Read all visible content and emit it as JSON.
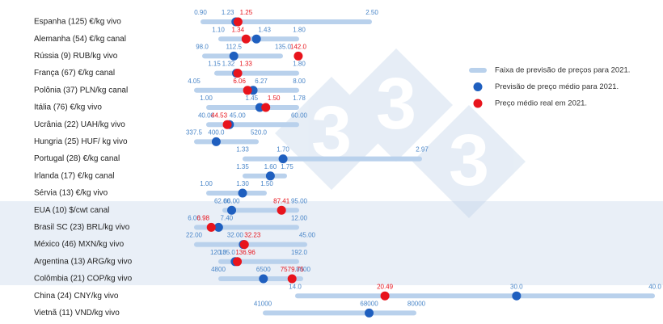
{
  "chart_data": {
    "type": "range",
    "series": [
      {
        "name": "Faixa de previsão de preços para 2021.",
        "color": "#b9d1ec"
      },
      {
        "name": "Previsão de preço médio para 2021.",
        "color": "#1f5fbf"
      },
      {
        "name": "Preço médio real em 2021.",
        "color": "#e8141c"
      }
    ],
    "label_color": "#4a86c8",
    "actual_label_color": "#e8141c",
    "rows": [
      {
        "label": "Espanha (125) €/kg vivo",
        "low": 0.9,
        "forecast": 1.23,
        "high": 2.5,
        "actual": 1.25,
        "value_labels": {
          "low": "0.90",
          "high": "2.50"
        }
      },
      {
        "label": "Alemanha (54) €/kg canal",
        "low": 1.1,
        "forecast": 1.43,
        "high": 1.8,
        "actual": 1.34,
        "value_labels": {
          "low": "1.10",
          "high": "1.80"
        }
      },
      {
        "label": "Rússia (9) RUB/kg vivo",
        "low": 98,
        "forecast": 112.5,
        "high": 135,
        "actual": 142,
        "value_labels": {
          "low": "98.0",
          "high": "135.0",
          "actual": "142.0"
        }
      },
      {
        "label": "França (67) €/kg canal",
        "low": 1.15,
        "forecast": 1.32,
        "high": 1.8,
        "actual": 1.33,
        "value_labels": {
          "high": "1.80"
        }
      },
      {
        "label": "Polônia (37) PLN/kg canal",
        "low": 4.05,
        "forecast": 6.27,
        "high": 8,
        "actual": 6.06,
        "value_labels": {
          "high": "8.00"
        }
      },
      {
        "label": "Itália (76) €/kg vivo",
        "low": 1,
        "forecast": 1.45,
        "high": 1.78,
        "actual": 1.5,
        "value_labels": {
          "low": "1.00",
          "actual": "1.50"
        }
      },
      {
        "label": "Ucrânia (22) UAH/kg vivo",
        "low": 40,
        "forecast": 45,
        "high": 60,
        "actual": 44.53,
        "value_labels": {
          "low": "40.00",
          "forecast": "45.00",
          "high": "60.00"
        }
      },
      {
        "label": "Hungria (25) HUF/ kg vivo",
        "low": 337.5,
        "forecast": 400,
        "high": 520,
        "value_labels": {
          "forecast": "400.0",
          "high": "520.0"
        }
      },
      {
        "label": "Portugal (28) €/kg canal",
        "low": 1.33,
        "forecast": 1.7,
        "high": 2.97,
        "value_labels": {
          "forecast": "1.70"
        }
      },
      {
        "label": "Irlanda (17) €/kg canal",
        "low": 1.35,
        "forecast": 1.6,
        "high": 1.75,
        "value_labels": {
          "forecast": "1.60"
        }
      },
      {
        "label": "Sérvia (13) €/kg vivo",
        "low": 1,
        "forecast": 1.3,
        "high": 1.5,
        "value_labels": {
          "low": "1.00",
          "forecast": "1.30",
          "high": "1.50"
        }
      },
      {
        "label": "EUA (10) $/cwt canal",
        "low": 62,
        "forecast": 66,
        "high": 95,
        "actual": 87.41,
        "value_labels": {
          "low": "62.00",
          "forecast": "66.00",
          "high": "95.00"
        }
      },
      {
        "label": "Brasil SC (23) BRL/kg vivo",
        "low": 6,
        "forecast": 7.4,
        "high": 12,
        "actual": 6.98,
        "value_labels": {
          "low": "6.00",
          "forecast": "7.40",
          "high": "12.00"
        }
      },
      {
        "label": "México (46) MXN/kg vivo",
        "low": 22,
        "forecast": 32,
        "high": 45,
        "actual": 32.23,
        "value_labels": {
          "low": "22.00",
          "forecast": "32.00",
          "high": "45.00"
        }
      },
      {
        "label": "Argentina (13) ARG/kg vivo",
        "low": 120,
        "forecast": 135,
        "high": 192,
        "actual": 136.96,
        "value_labels": {
          "low": "120.0",
          "forecast": "135.0",
          "high": "192.0"
        }
      },
      {
        "label": "Colômbia (21) COP/kg vivo",
        "low": 4800,
        "forecast": 6500,
        "high": 8000,
        "actual": 7579.75
      },
      {
        "label": "China (24) CNY/kg vivo",
        "low": 14,
        "forecast": 30,
        "high": 40,
        "actual": 20.49,
        "value_labels": {
          "low": "14.0",
          "forecast": "30.0",
          "high": "40.0"
        }
      },
      {
        "label": "Vietnã (11) VND/kg vivo",
        "low": 41000,
        "forecast": 68000,
        "high": 80000
      }
    ]
  }
}
